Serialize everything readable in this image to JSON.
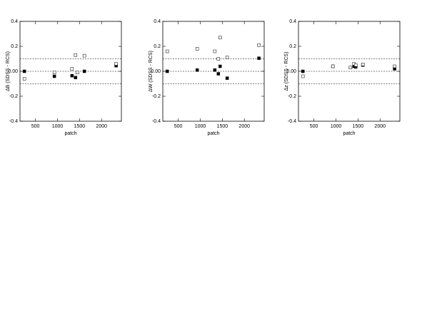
{
  "chart_data": [
    {
      "type": "scatter",
      "ylabel": "ΔB (SDSS - RCS)",
      "xlabel": "patch",
      "x": [
        250,
        930,
        1330,
        1410,
        1450,
        1610,
        2330
      ],
      "series": [
        {
          "marker": "filled",
          "color": "#000000",
          "values": [
            0.0,
            -0.04,
            -0.035,
            -0.05,
            -0.01,
            0.0,
            0.045
          ]
        },
        {
          "marker": "open",
          "color": "#000000",
          "values": [
            -0.06,
            -0.01,
            0.02,
            0.13,
            -0.01,
            0.125,
            0.06
          ]
        }
      ],
      "hlines": [
        -0.1,
        0,
        0.1
      ],
      "xlim": [
        150,
        2450
      ],
      "xticks": [
        500,
        1000,
        1500,
        2000
      ],
      "ylim": [
        -0.4,
        0.4
      ],
      "yticks": [
        -0.4,
        -0.2,
        {
          "value": 0,
          "label": "0.00"
        },
        0.2,
        0.4
      ]
    },
    {
      "type": "scatter",
      "ylabel": "ΔW (SDSS - RCS)",
      "xlabel": "patch",
      "x": [
        250,
        930,
        1330,
        1410,
        1450,
        1610,
        2330
      ],
      "series": [
        {
          "marker": "filled",
          "color": "#000000",
          "values": [
            0.0,
            0.01,
            0.01,
            -0.02,
            0.04,
            -0.055,
            0.105
          ]
        },
        {
          "marker": "open",
          "color": "#000000",
          "values": [
            0.16,
            0.18,
            0.16,
            0.1,
            0.27,
            0.11,
            0.21
          ]
        }
      ],
      "hlines": [
        -0.1,
        0,
        0.1
      ],
      "xlim": [
        150,
        2450
      ],
      "xticks": [
        500,
        1000,
        1500,
        2000
      ],
      "ylim": [
        -0.4,
        0.4
      ],
      "yticks": [
        -0.4,
        -0.2,
        {
          "value": 0,
          "label": "0.00"
        },
        0.2,
        0.4
      ]
    },
    {
      "type": "scatter",
      "ylabel": "Δz (SDSS - RCS)",
      "xlabel": "patch",
      "x": [
        250,
        930,
        1330,
        1410,
        1450,
        1610,
        2330
      ],
      "series": [
        {
          "marker": "filled",
          "color": "#000000",
          "values": [
            0.0,
            0.04,
            0.03,
            0.04,
            0.035,
            0.05,
            0.02
          ]
        },
        {
          "marker": "open",
          "color": "#000000",
          "values": [
            -0.04,
            0.04,
            0.03,
            0.06,
            0.05,
            0.055,
            0.04
          ]
        }
      ],
      "hlines": [
        -0.1,
        0,
        0.1
      ],
      "xlim": [
        150,
        2450
      ],
      "xticks": [
        500,
        1000,
        1500,
        2000
      ],
      "ylim": [
        -0.4,
        0.4
      ],
      "yticks": [
        -0.4,
        -0.2,
        {
          "value": 0,
          "label": "0.00"
        },
        0.2,
        0.4
      ]
    }
  ]
}
